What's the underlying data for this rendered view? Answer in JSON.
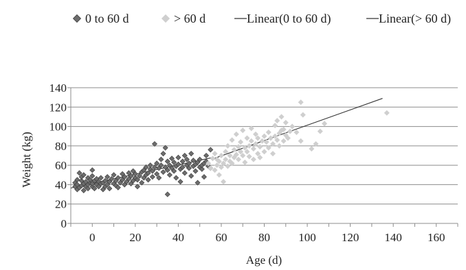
{
  "chart_data": {
    "type": "scatter",
    "title": "",
    "xlabel": "Age (d)",
    "ylabel": "Weight (kg)",
    "xlim": [
      -10,
      170
    ],
    "ylim": [
      0,
      140
    ],
    "x_ticks": [
      0,
      20,
      40,
      60,
      80,
      100,
      120,
      140,
      160
    ],
    "y_ticks": [
      0,
      20,
      40,
      60,
      80,
      100,
      120,
      140
    ],
    "grid": "horizontal",
    "legend_position": "top",
    "legend": [
      {
        "label": "0 to 60 d",
        "kind": "marker",
        "color": "#6d6d6d"
      },
      {
        "label": "> 60 d",
        "kind": "marker",
        "color": "#cfcfcf"
      },
      {
        "label": "Linear(0 to 60 d)",
        "kind": "line",
        "color": "#333333"
      },
      {
        "label": "Linear(> 60 d)",
        "kind": "line",
        "color": "#333333"
      }
    ],
    "series": [
      {
        "name": "0 to 60 d",
        "color": "#6d6d6d",
        "points": [
          [
            -8,
            38
          ],
          [
            -8,
            42
          ],
          [
            -7,
            35
          ],
          [
            -7,
            40
          ],
          [
            -7,
            45
          ],
          [
            -6,
            37
          ],
          [
            -6,
            52
          ],
          [
            -5,
            39
          ],
          [
            -5,
            44
          ],
          [
            -5,
            48
          ],
          [
            -4,
            34
          ],
          [
            -4,
            41
          ],
          [
            -4,
            50
          ],
          [
            -3,
            38
          ],
          [
            -3,
            43
          ],
          [
            -2,
            36
          ],
          [
            -2,
            40
          ],
          [
            -2,
            47
          ],
          [
            -1,
            42
          ],
          [
            -1,
            45
          ],
          [
            0,
            38
          ],
          [
            0,
            41
          ],
          [
            0,
            49
          ],
          [
            0,
            55
          ],
          [
            1,
            36
          ],
          [
            1,
            44
          ],
          [
            2,
            40
          ],
          [
            2,
            46
          ],
          [
            3,
            38
          ],
          [
            3,
            43
          ],
          [
            4,
            41
          ],
          [
            4,
            47
          ],
          [
            5,
            35
          ],
          [
            5,
            42
          ],
          [
            6,
            44
          ],
          [
            6,
            38
          ],
          [
            7,
            40
          ],
          [
            7,
            48
          ],
          [
            8,
            36
          ],
          [
            8,
            43
          ],
          [
            9,
            46
          ],
          [
            10,
            41
          ],
          [
            10,
            50
          ],
          [
            11,
            39
          ],
          [
            11,
            44
          ],
          [
            12,
            37
          ],
          [
            12,
            47
          ],
          [
            13,
            42
          ],
          [
            14,
            45
          ],
          [
            14,
            51
          ],
          [
            15,
            40
          ],
          [
            15,
            48
          ],
          [
            16,
            43
          ],
          [
            17,
            46
          ],
          [
            17,
            52
          ],
          [
            18,
            41
          ],
          [
            18,
            49
          ],
          [
            19,
            44
          ],
          [
            19,
            54
          ],
          [
            20,
            47
          ],
          [
            20,
            51
          ],
          [
            21,
            38
          ],
          [
            21,
            45
          ],
          [
            22,
            49
          ],
          [
            23,
            42
          ],
          [
            23,
            53
          ],
          [
            24,
            47
          ],
          [
            24,
            55
          ],
          [
            25,
            50
          ],
          [
            25,
            58
          ],
          [
            26,
            45
          ],
          [
            26,
            52
          ],
          [
            27,
            56
          ],
          [
            27,
            60
          ],
          [
            28,
            48
          ],
          [
            28,
            54
          ],
          [
            29,
            58
          ],
          [
            29,
            82
          ],
          [
            30,
            51
          ],
          [
            30,
            62
          ],
          [
            31,
            47
          ],
          [
            31,
            57
          ],
          [
            32,
            60
          ],
          [
            32,
            66
          ],
          [
            33,
            53
          ],
          [
            33,
            72
          ],
          [
            34,
            58
          ],
          [
            34,
            78
          ],
          [
            35,
            30
          ],
          [
            35,
            55
          ],
          [
            35,
            64
          ],
          [
            36,
            50
          ],
          [
            36,
            60
          ],
          [
            37,
            57
          ],
          [
            37,
            67
          ],
          [
            38,
            54
          ],
          [
            38,
            63
          ],
          [
            39,
            47
          ],
          [
            39,
            59
          ],
          [
            40,
            61
          ],
          [
            40,
            68
          ],
          [
            41,
            43
          ],
          [
            41,
            56
          ],
          [
            42,
            58
          ],
          [
            42,
            64
          ],
          [
            43,
            52
          ],
          [
            43,
            70
          ],
          [
            44,
            60
          ],
          [
            44,
            66
          ],
          [
            45,
            57
          ],
          [
            45,
            62
          ],
          [
            46,
            49
          ],
          [
            46,
            72
          ],
          [
            47,
            59
          ],
          [
            47,
            65
          ],
          [
            48,
            54
          ],
          [
            48,
            61
          ],
          [
            49,
            63
          ],
          [
            49,
            42
          ],
          [
            50,
            58
          ],
          [
            50,
            66
          ],
          [
            51,
            56
          ],
          [
            51,
            60
          ],
          [
            52,
            62
          ],
          [
            52,
            48
          ],
          [
            53,
            70
          ],
          [
            53,
            64
          ],
          [
            54,
            59
          ],
          [
            55,
            57
          ],
          [
            55,
            76
          ]
        ]
      },
      {
        "name": "> 60 d",
        "color": "#cfcfcf",
        "points": [
          [
            54,
            62
          ],
          [
            55,
            57
          ],
          [
            56,
            67
          ],
          [
            57,
            55
          ],
          [
            57,
            72
          ],
          [
            58,
            60
          ],
          [
            58,
            66
          ],
          [
            59,
            50
          ],
          [
            59,
            64
          ],
          [
            60,
            58
          ],
          [
            60,
            70
          ],
          [
            61,
            43
          ],
          [
            61,
            62
          ],
          [
            62,
            66
          ],
          [
            62,
            74
          ],
          [
            63,
            59
          ],
          [
            63,
            80
          ],
          [
            64,
            64
          ],
          [
            64,
            70
          ],
          [
            65,
            62
          ],
          [
            65,
            86
          ],
          [
            66,
            68
          ],
          [
            66,
            76
          ],
          [
            67,
            71
          ],
          [
            67,
            92
          ],
          [
            68,
            66
          ],
          [
            68,
            79
          ],
          [
            69,
            74
          ],
          [
            69,
            84
          ],
          [
            70,
            70
          ],
          [
            70,
            96
          ],
          [
            71,
            63
          ],
          [
            71,
            78
          ],
          [
            72,
            74
          ],
          [
            72,
            88
          ],
          [
            73,
            80
          ],
          [
            73,
            69
          ],
          [
            74,
            85
          ],
          [
            74,
            98
          ],
          [
            75,
            66
          ],
          [
            75,
            77
          ],
          [
            76,
            82
          ],
          [
            76,
            92
          ],
          [
            77,
            72
          ],
          [
            77,
            88
          ],
          [
            78,
            79
          ],
          [
            78,
            68
          ],
          [
            79,
            85
          ],
          [
            80,
            90
          ],
          [
            80,
            74
          ],
          [
            81,
            84
          ],
          [
            82,
            78
          ],
          [
            82,
            94
          ],
          [
            83,
            88
          ],
          [
            84,
            72
          ],
          [
            84,
            82
          ],
          [
            85,
            90
          ],
          [
            85,
            101
          ],
          [
            86,
            86
          ],
          [
            86,
            106
          ],
          [
            87,
            80
          ],
          [
            87,
            93
          ],
          [
            88,
            96
          ],
          [
            88,
            110
          ],
          [
            89,
            85
          ],
          [
            89,
            97
          ],
          [
            90,
            91
          ],
          [
            90,
            104
          ],
          [
            91,
            88
          ],
          [
            92,
            95
          ],
          [
            93,
            100
          ],
          [
            95,
            94
          ],
          [
            97,
            85
          ],
          [
            97,
            125
          ],
          [
            98,
            112
          ],
          [
            102,
            77
          ],
          [
            104,
            82
          ],
          [
            106,
            95
          ],
          [
            108,
            103
          ],
          [
            137,
            114
          ]
        ]
      }
    ],
    "trendlines": [
      {
        "name": "Linear(0 to 60 d)",
        "x": [
          -10,
          56
        ],
        "y": [
          36.5,
          68
        ]
      },
      {
        "name": "Linear(> 60 d)",
        "x": [
          56,
          135
        ],
        "y": [
          66.5,
          129
        ]
      }
    ]
  }
}
